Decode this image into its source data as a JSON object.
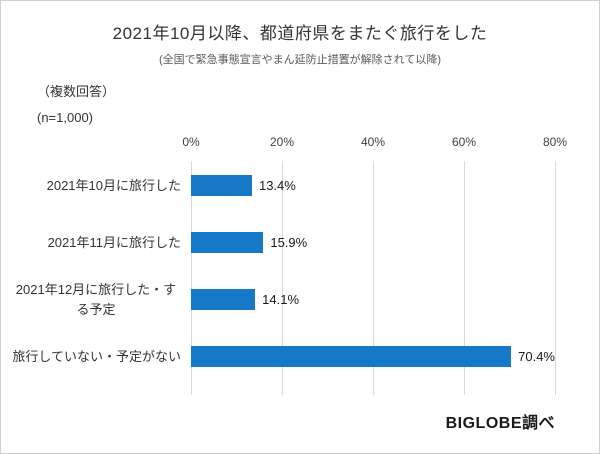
{
  "header": {
    "title": "2021年10月以降、都道府県をまたぐ旅行をした",
    "subtitle": "(全国で緊急事態宣言やまん延防止措置が解除されて以降)"
  },
  "meta": {
    "multiple_answer": "（複数回答）",
    "sample": "(n=1,000)"
  },
  "footer": {
    "credit": "BIGLOBE調べ"
  },
  "chart_data": {
    "type": "bar",
    "orientation": "horizontal",
    "title": "2021年10月以降、都道府県をまたぐ旅行をした",
    "subtitle": "(全国で緊急事態宣言やまん延防止措置が解除されて以降)",
    "categories": [
      "2021年10月に旅行した",
      "2021年11月に旅行した",
      "2021年12月に旅行した・する予定",
      "旅行していない・予定がない"
    ],
    "values": [
      13.4,
      15.9,
      14.1,
      70.4
    ],
    "value_labels": [
      "13.4%",
      "15.9%",
      "14.1%",
      "70.4%"
    ],
    "xlim": [
      0,
      80
    ],
    "x_ticks": [
      "0%",
      "20%",
      "40%",
      "60%",
      "80%"
    ],
    "bar_color": "#1778c8",
    "gridline_color": "#d9d9d9",
    "grid": true,
    "legend": "none"
  }
}
